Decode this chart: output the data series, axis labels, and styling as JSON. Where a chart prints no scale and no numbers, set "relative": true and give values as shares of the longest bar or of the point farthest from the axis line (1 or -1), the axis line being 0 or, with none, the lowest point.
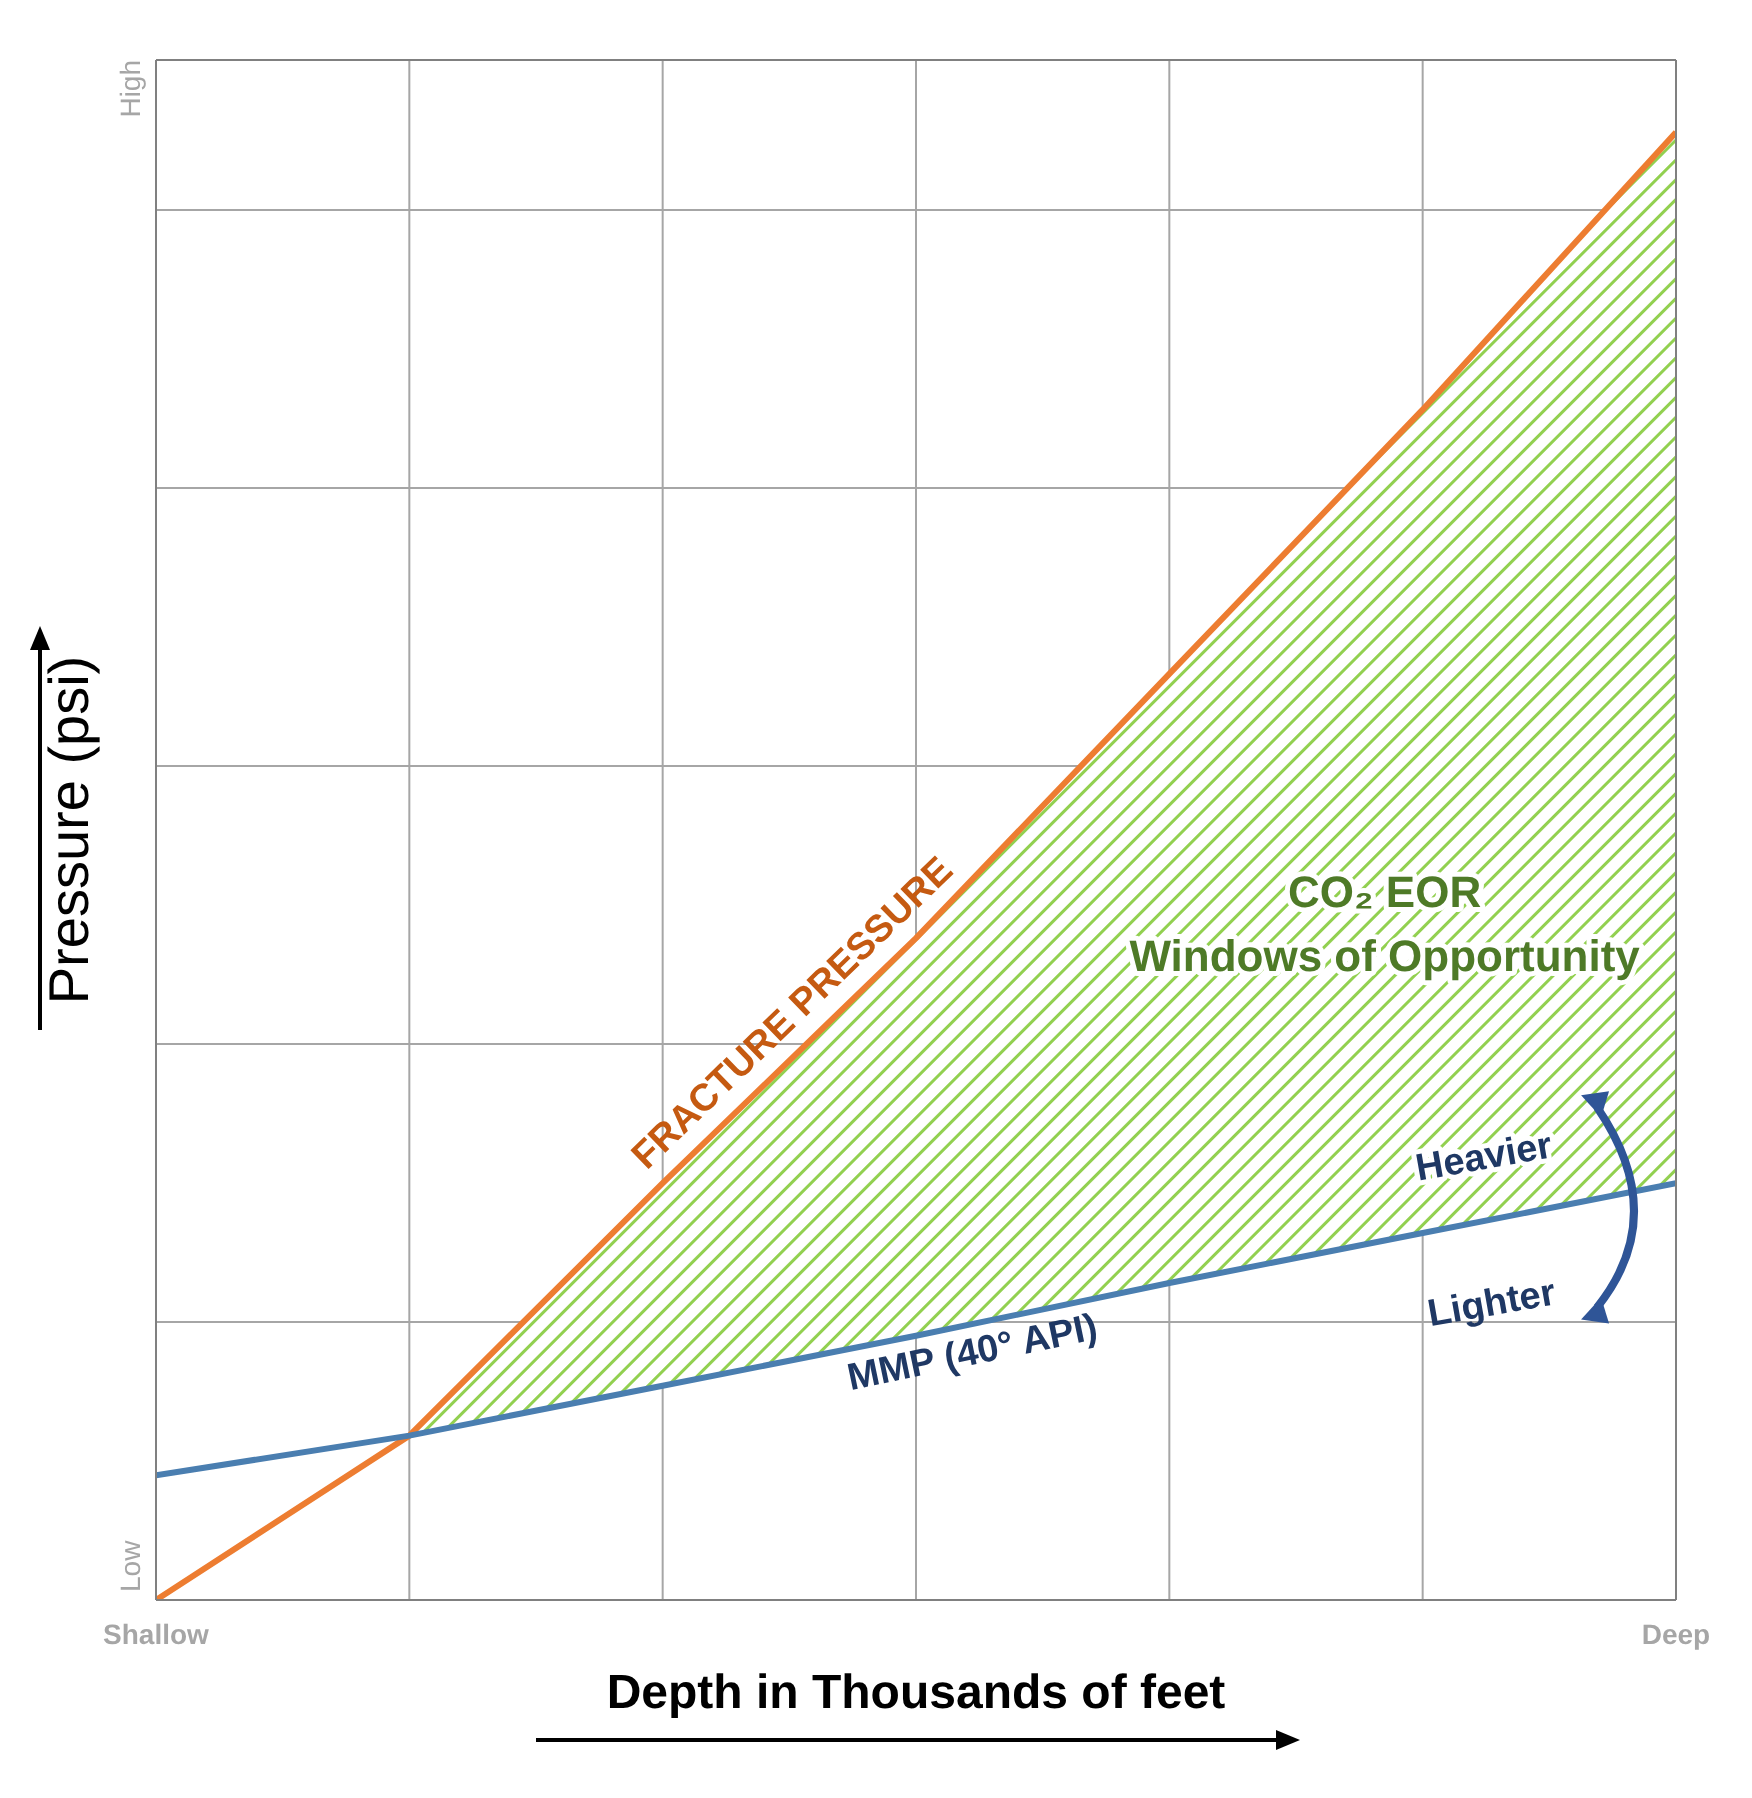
{
  "chart_data": {
    "type": "line",
    "relative": true,
    "xlabel": "Depth in Thousands of feet",
    "ylabel": "Pressure (psi)",
    "categories": [
      "Shallow",
      null,
      null,
      null,
      null,
      null,
      "Deep"
    ],
    "series": [
      {
        "name": "FRACTURE PRESSURE",
        "color": "#ed7d31",
        "values": [
          0,
          0.112,
          0.284,
          0.451,
          0.631,
          0.811,
          1
        ],
        "lower": [
          null,
          0.112,
          0.146,
          0.18,
          0.216,
          0.25,
          0.284
        ],
        "upper": [
          null,
          0.112,
          0.284,
          0.451,
          0.631,
          0.811,
          1
        ]
      },
      {
        "name": "MMP (40° API)",
        "color": "#4a7eb0",
        "values": [
          0.085,
          0.112,
          0.146,
          0.18,
          0.216,
          0.25,
          0.284
        ]
      }
    ],
    "annotations": [
      "CO₂ EOR\nWindows of Opportunity",
      "Heavier",
      "Lighter",
      "Low",
      "High"
    ],
    "grid": true,
    "marker": "none",
    "line_style": "solid"
  }
}
